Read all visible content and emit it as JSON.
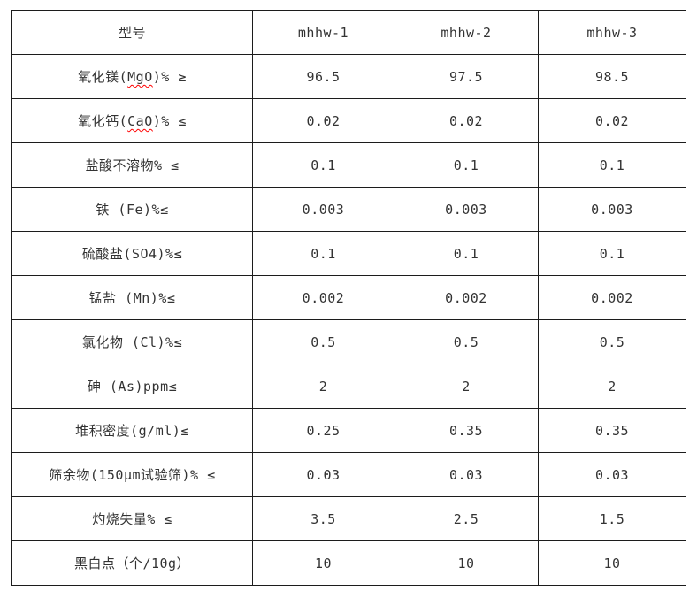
{
  "colors": {
    "background": "#ffffff",
    "border": "#1c1c1c",
    "text": "#333333",
    "spellcheck_underline": "#ff0000"
  },
  "table": {
    "header": {
      "col0": "型号",
      "col1": "mhhw-1",
      "col2": "mhhw-2",
      "col3": "mhhw-3"
    },
    "rows": [
      {
        "label": "氧化镁(MgO)% ≥",
        "wavy": "MgO",
        "values": [
          "96.5",
          "97.5",
          "98.5"
        ]
      },
      {
        "label": "氧化钙(CaO)% ≤",
        "wavy": "CaO",
        "values": [
          "0.02",
          "0.02",
          "0.02"
        ]
      },
      {
        "label": "盐酸不溶物% ≤",
        "wavy": "",
        "values": [
          "0.1",
          "0.1",
          "0.1"
        ]
      },
      {
        "label": "铁 (Fe)%≤",
        "wavy": "",
        "values": [
          "0.003",
          "0.003",
          "0.003"
        ]
      },
      {
        "label": "硫酸盐(SO4)%≤",
        "wavy": "",
        "values": [
          "0.1",
          "0.1",
          "0.1"
        ]
      },
      {
        "label": "锰盐 (Mn)%≤",
        "wavy": "",
        "values": [
          "0.002",
          "0.002",
          "0.002"
        ]
      },
      {
        "label": "氯化物 (Cl)%≤",
        "wavy": "",
        "values": [
          "0.5",
          "0.5",
          "0.5"
        ]
      },
      {
        "label": "砷 (As)ppm≤",
        "wavy": "",
        "values": [
          "2",
          "2",
          "2"
        ]
      },
      {
        "label": "堆积密度(g/ml)≤",
        "wavy": "",
        "values": [
          "0.25",
          "0.35",
          "0.35"
        ]
      },
      {
        "label": "筛余物(150μm试验筛)% ≤",
        "wavy": "",
        "values": [
          "0.03",
          "0.03",
          "0.03"
        ]
      },
      {
        "label": "灼烧失量% ≤",
        "wavy": "",
        "values": [
          "3.5",
          "2.5",
          "1.5"
        ]
      },
      {
        "label": "黑白点（个/10g）",
        "wavy": "",
        "values": [
          "10",
          "10",
          "10"
        ]
      }
    ]
  },
  "chart_data": {
    "type": "table",
    "title": "",
    "columns": [
      "型号",
      "mhhw-1",
      "mhhw-2",
      "mhhw-3"
    ],
    "rows": [
      [
        "氧化镁(MgO)% ≥",
        "96.5",
        "97.5",
        "98.5"
      ],
      [
        "氧化钙(CaO)% ≤",
        "0.02",
        "0.02",
        "0.02"
      ],
      [
        "盐酸不溶物% ≤",
        "0.1",
        "0.1",
        "0.1"
      ],
      [
        "铁 (Fe)%≤",
        "0.003",
        "0.003",
        "0.003"
      ],
      [
        "硫酸盐(SO4)%≤",
        "0.1",
        "0.1",
        "0.1"
      ],
      [
        "锰盐 (Mn)%≤",
        "0.002",
        "0.002",
        "0.002"
      ],
      [
        "氯化物 (Cl)%≤",
        "0.5",
        "0.5",
        "0.5"
      ],
      [
        "砷 (As)ppm≤",
        "2",
        "2",
        "2"
      ],
      [
        "堆积密度(g/ml)≤",
        "0.25",
        "0.35",
        "0.35"
      ],
      [
        "筛余物(150μm试验筛)% ≤",
        "0.03",
        "0.03",
        "0.03"
      ],
      [
        "灼烧失量% ≤",
        "3.5",
        "2.5",
        "1.5"
      ],
      [
        "黑白点（个/10g）",
        "10",
        "10",
        "10"
      ]
    ],
    "layout_hints": {
      "grid": true,
      "label_column_alignment": "center",
      "value_alignment": "center",
      "spellcheck_wavy_underline_on": [
        "MgO",
        "CaO"
      ]
    }
  }
}
